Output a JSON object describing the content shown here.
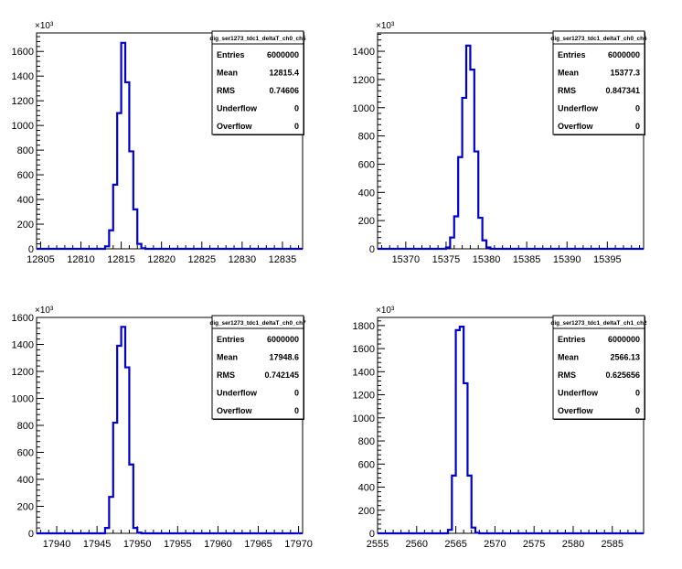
{
  "chart_data": [
    {
      "type": "histogram",
      "stats_title": "dig_ser1273_tdc1_deltaT_ch0_ch5",
      "y_multiplier": "×10³",
      "xlim": [
        12804.5,
        12837.5
      ],
      "ylim": [
        0,
        1750
      ],
      "x_ticks": [
        "12805",
        "12810",
        "12815",
        "12820",
        "12825",
        "12830",
        "12835"
      ],
      "y_ticks": [
        "0",
        "200",
        "400",
        "600",
        "800",
        "1000",
        "1200",
        "1400",
        "1600"
      ],
      "bins": {
        "start": 12812.5,
        "width": 0.5,
        "values": [
          0,
          20,
          150,
          520,
          1100,
          1670,
          1350,
          790,
          320,
          40,
          5,
          0
        ]
      },
      "stats": [
        {
          "label": "Entries",
          "value": "6000000"
        },
        {
          "label": "Mean",
          "value": "12815.4"
        },
        {
          "label": "RMS",
          "value": "0.74606"
        },
        {
          "label": "Underflow",
          "value": "0"
        },
        {
          "label": "Overflow",
          "value": "0"
        }
      ]
    },
    {
      "type": "histogram",
      "stats_title": "dig_ser1273_tdc1_deltaT_ch0_ch6",
      "y_multiplier": "×10³",
      "xlim": [
        15366.5,
        15399.5
      ],
      "ylim": [
        0,
        1530
      ],
      "x_ticks": [
        "15370",
        "15375",
        "15380",
        "15385",
        "15390",
        "15395"
      ],
      "y_ticks": [
        "0",
        "200",
        "400",
        "600",
        "800",
        "1000",
        "1200",
        "1400"
      ],
      "bins": {
        "start": 15374.5,
        "width": 0.5,
        "values": [
          0,
          10,
          80,
          230,
          650,
          1070,
          1440,
          1270,
          690,
          220,
          60,
          10,
          0
        ]
      },
      "stats": [
        {
          "label": "Entries",
          "value": "6000000"
        },
        {
          "label": "Mean",
          "value": "15377.3"
        },
        {
          "label": "RMS",
          "value": "0.847341"
        },
        {
          "label": "Underflow",
          "value": "0"
        },
        {
          "label": "Overflow",
          "value": "0"
        }
      ]
    },
    {
      "type": "histogram",
      "stats_title": "dig_ser1273_tdc1_deltaT_ch0_ch7",
      "y_multiplier": "×10³",
      "xlim": [
        17937.5,
        17970.5
      ],
      "ylim": [
        0,
        1600
      ],
      "x_ticks": [
        "17940",
        "17945",
        "17950",
        "17955",
        "17960",
        "17965",
        "17970"
      ],
      "y_ticks": [
        "0",
        "200",
        "400",
        "600",
        "800",
        "1000",
        "1200",
        "1400",
        "1600"
      ],
      "bins": {
        "start": 17945.5,
        "width": 0.5,
        "values": [
          0,
          40,
          270,
          820,
          1390,
          1530,
          1230,
          510,
          40,
          5,
          0
        ]
      },
      "stats": [
        {
          "label": "Entries",
          "value": "6000000"
        },
        {
          "label": "Mean",
          "value": "17948.6"
        },
        {
          "label": "RMS",
          "value": "0.742145"
        },
        {
          "label": "Underflow",
          "value": "0"
        },
        {
          "label": "Overflow",
          "value": "0"
        }
      ]
    },
    {
      "type": "histogram",
      "stats_title": "dig_ser1273_tdc1_deltaT_ch1_ch2",
      "y_multiplier": "×10³",
      "xlim": [
        2555,
        2589
      ],
      "ylim": [
        0,
        1870
      ],
      "x_ticks": [
        "2555",
        "2560",
        "2565",
        "2570",
        "2575",
        "2580",
        "2585"
      ],
      "y_ticks": [
        "0",
        "200",
        "400",
        "600",
        "800",
        "1000",
        "1200",
        "1400",
        "1600",
        "1800"
      ],
      "bins": {
        "start": 2563.5,
        "width": 0.5,
        "values": [
          0,
          30,
          500,
          1760,
          1790,
          1300,
          500,
          50,
          5,
          0
        ]
      },
      "stats": [
        {
          "label": "Entries",
          "value": "6000000"
        },
        {
          "label": "Mean",
          "value": "2566.13"
        },
        {
          "label": "RMS",
          "value": "0.625656"
        },
        {
          "label": "Underflow",
          "value": "0"
        },
        {
          "label": "Overflow",
          "value": "0"
        }
      ]
    }
  ]
}
